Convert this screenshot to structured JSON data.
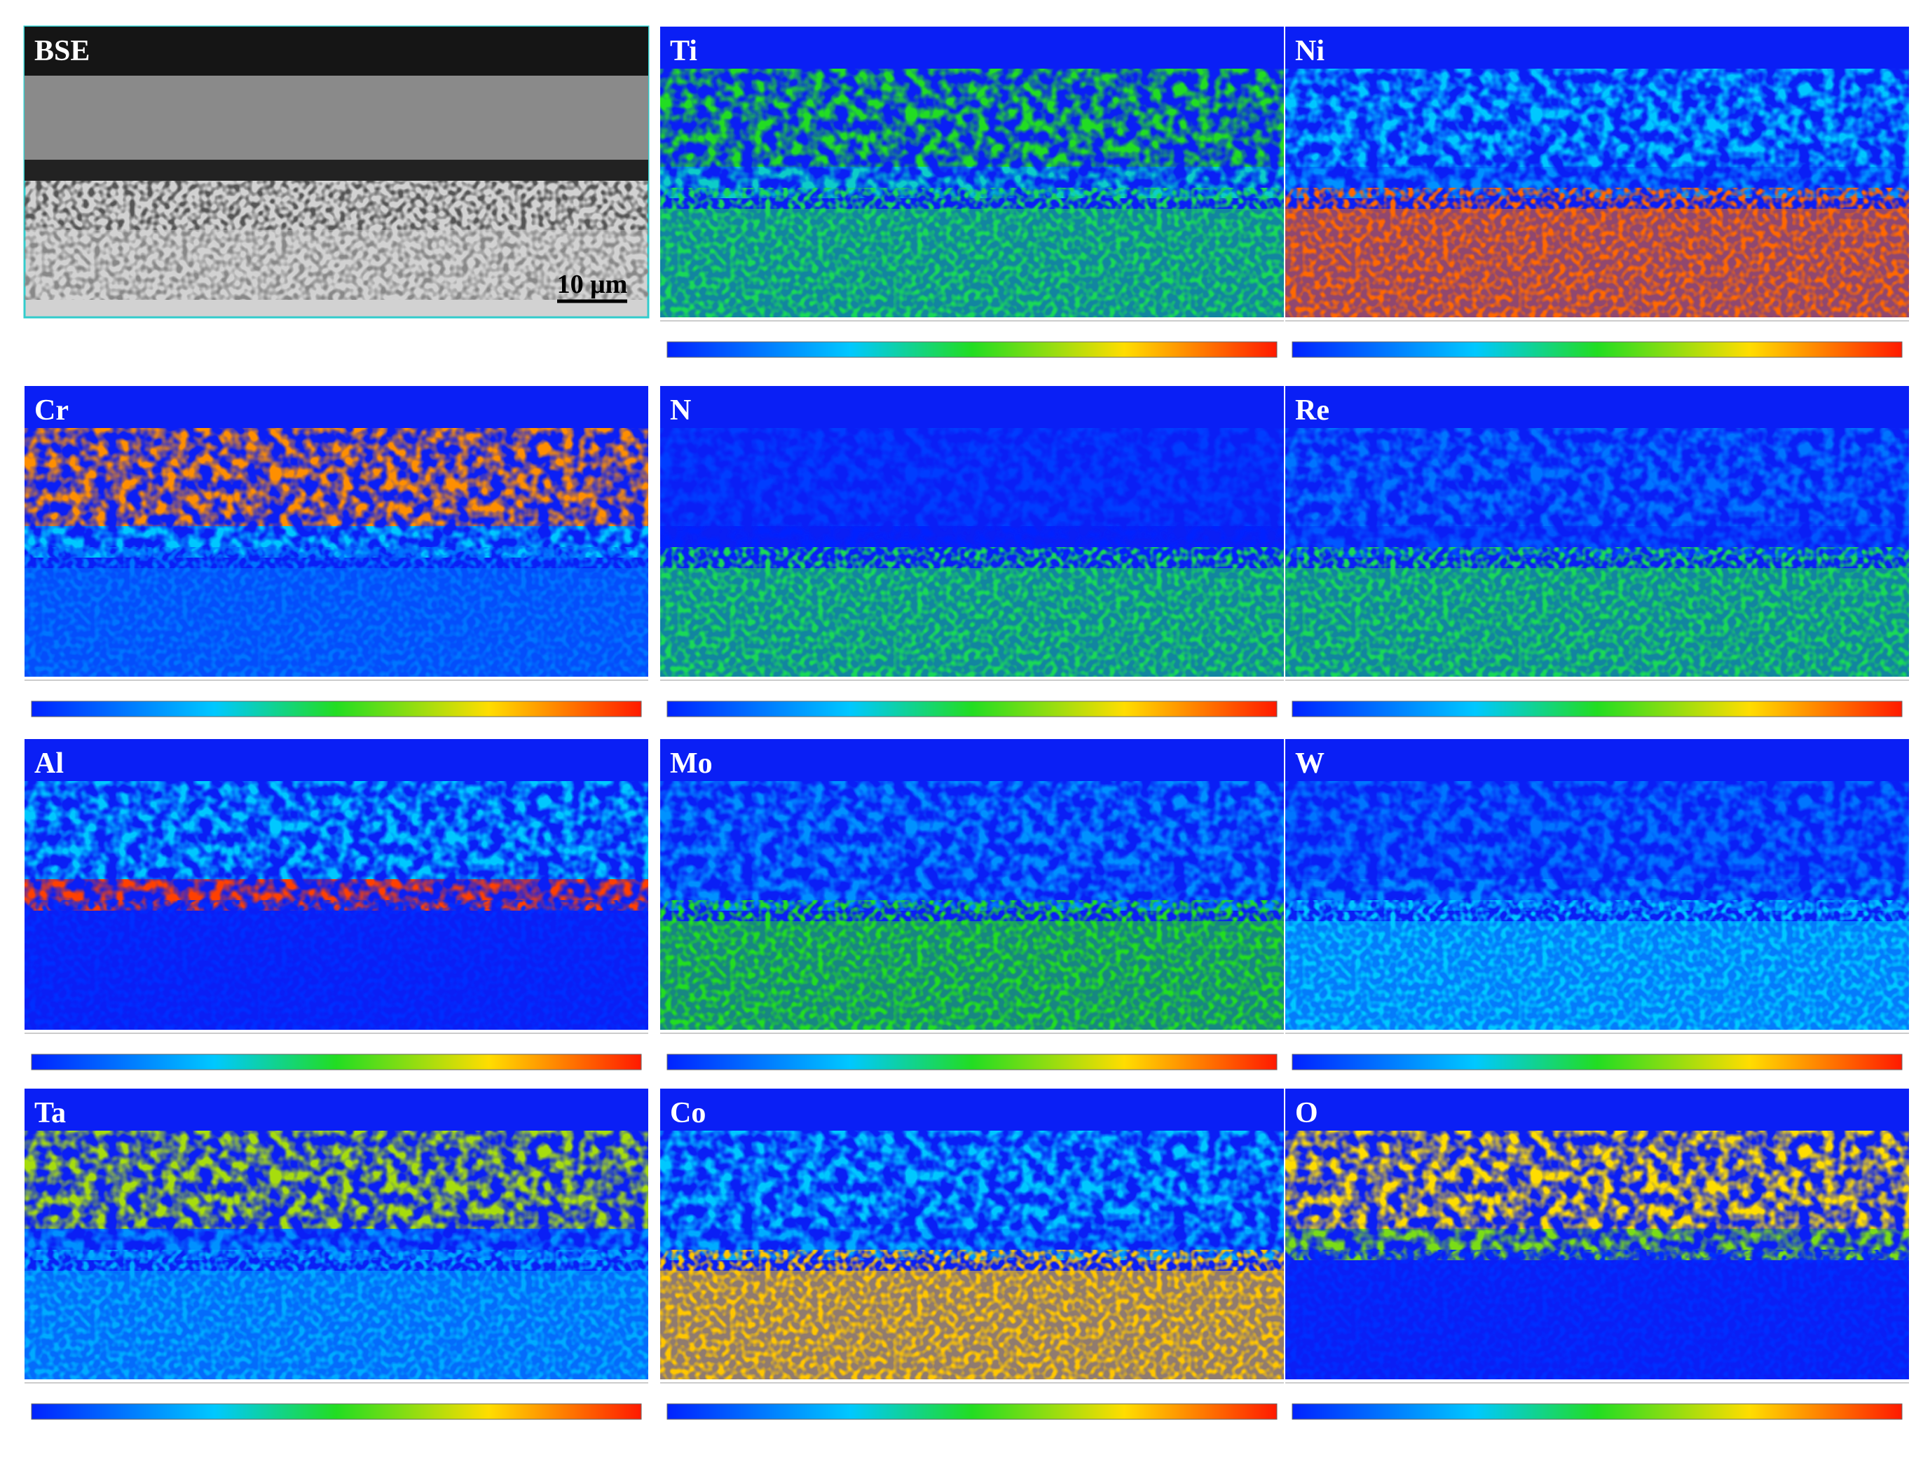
{
  "panels": [
    {
      "label": "BSE"
    },
    {
      "label": "Ti"
    },
    {
      "label": "Ni"
    },
    {
      "label": "Cr"
    },
    {
      "label": "N"
    },
    {
      "label": "Re"
    },
    {
      "label": "Al"
    },
    {
      "label": "Mo"
    },
    {
      "label": "W"
    },
    {
      "label": "Ta"
    },
    {
      "label": "Co"
    },
    {
      "label": "O"
    }
  ],
  "scale_bar": "10 μm"
}
